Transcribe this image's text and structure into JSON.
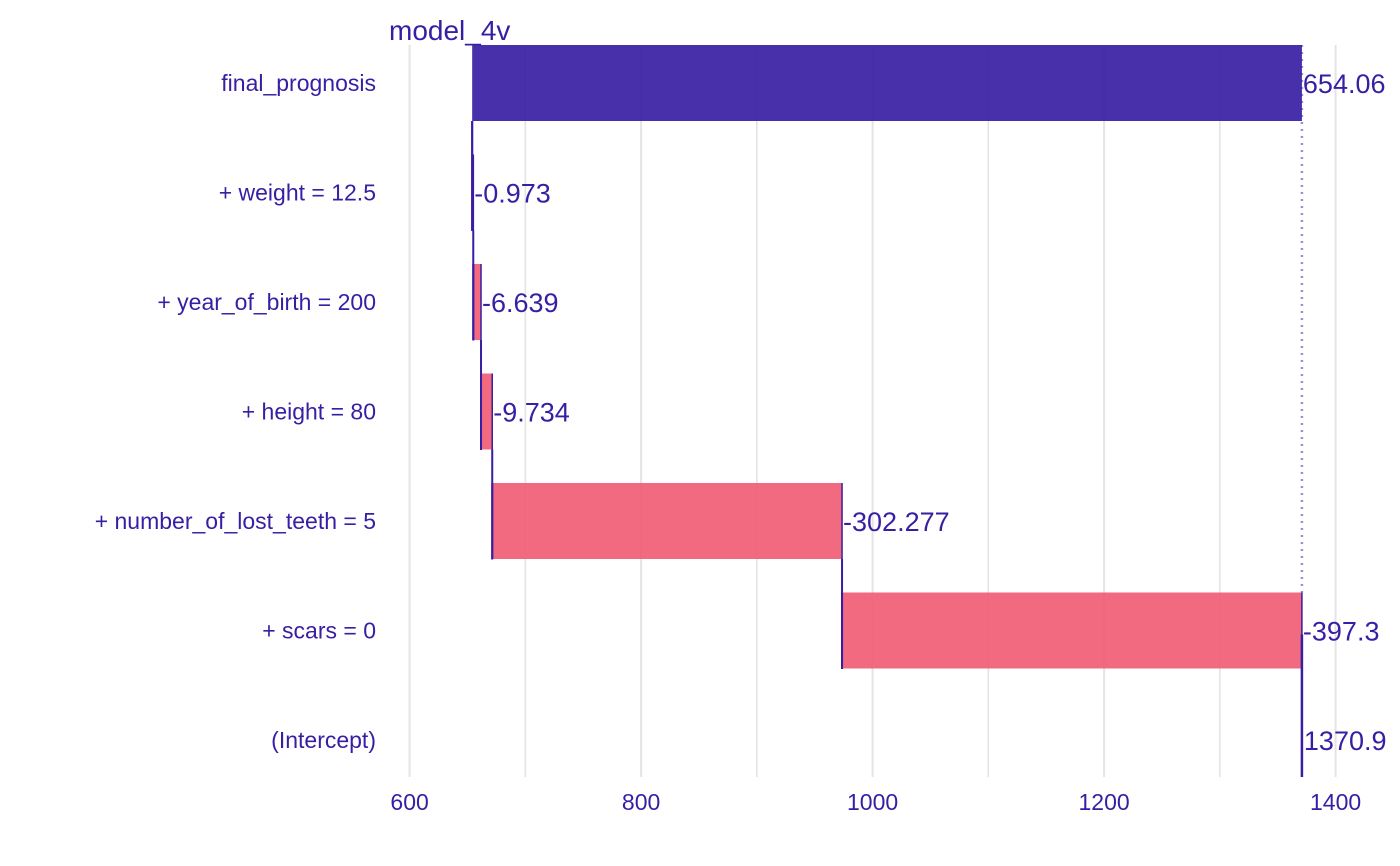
{
  "chart_data": {
    "type": "bar",
    "subtype": "break-down waterfall",
    "title": "model_4v",
    "xlabel": "",
    "ylabel": "",
    "xlim": [
      600,
      1400
    ],
    "xticks": [
      600,
      800,
      1000,
      1200,
      1400
    ],
    "grid": true,
    "legend": "none",
    "rows": [
      {
        "label": "final_prognosis",
        "value_label": "654.06",
        "start": 1370.9,
        "end": 654.06,
        "kind": "prediction"
      },
      {
        "label": "+ weight = 12.5",
        "value_label": "-0.973",
        "start": 655.0,
        "end": 654.06,
        "kind": "negative"
      },
      {
        "label": "+ year_of_birth = 200",
        "value_label": "-6.639",
        "start": 661.7,
        "end": 655.0,
        "kind": "negative"
      },
      {
        "label": "+ height = 80",
        "value_label": "-9.734",
        "start": 671.4,
        "end": 661.7,
        "kind": "negative"
      },
      {
        "label": "+ number_of_lost_teeth = 5",
        "value_label": "-302.277",
        "start": 973.6,
        "end": 671.4,
        "kind": "negative"
      },
      {
        "label": "+ scars = 0",
        "value_label": "-397.3",
        "start": 1370.9,
        "end": 973.6,
        "kind": "negative"
      },
      {
        "label": "(Intercept)",
        "value_label": "1370.9",
        "start": 1370.9,
        "end": 1370.9,
        "kind": "intercept"
      }
    ],
    "colors": {
      "prediction": "#371ea3",
      "negative": "#f05a71",
      "positive": "#8bdcbe",
      "text": "#371ea3",
      "grid": "#e4e4e4",
      "connector": "#371ea3"
    }
  }
}
